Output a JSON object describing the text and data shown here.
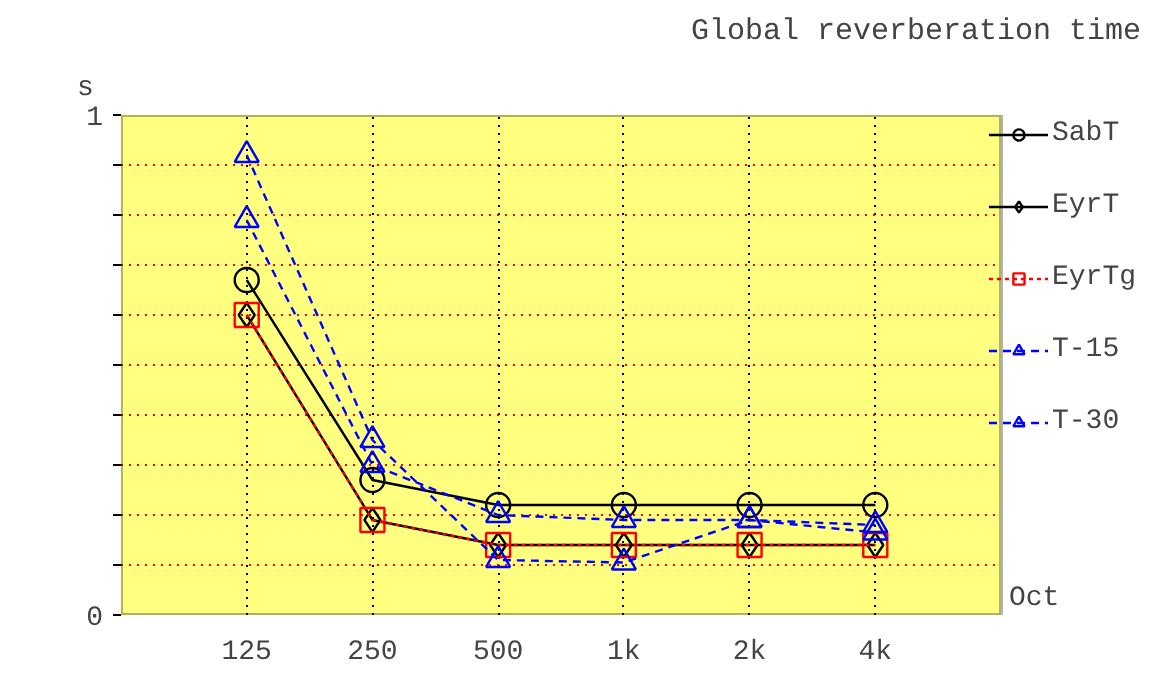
{
  "chart_data": {
    "type": "line",
    "title": "Global reverberation time",
    "ylabel": "s",
    "xlabel": "Oct",
    "categories": [
      "125",
      "250",
      "500",
      "1k",
      "2k",
      "4k"
    ],
    "ylim": [
      0,
      1
    ],
    "yticks": [
      0,
      {
        "value": 0.1,
        "label": null
      },
      {
        "value": 0.2,
        "label": null
      },
      {
        "value": 0.3,
        "label": null
      },
      {
        "value": 0.4,
        "label": null
      },
      {
        "value": 0.5,
        "label": null
      },
      {
        "value": 0.6,
        "label": null
      },
      {
        "value": 0.7,
        "label": null
      },
      {
        "value": 0.8,
        "label": null
      },
      {
        "value": 0.9,
        "label": null
      },
      1
    ],
    "grid": true,
    "legend": "right",
    "series": [
      {
        "name": "SabT",
        "color": "#000000",
        "marker": "circle",
        "line_style": "solid",
        "values": [
          0.67,
          0.27,
          0.22,
          0.22,
          0.22,
          0.22
        ]
      },
      {
        "name": "EyrT",
        "color": "#000000",
        "marker": "diamond",
        "line_style": "solid",
        "values": [
          0.6,
          0.19,
          0.14,
          0.14,
          0.14,
          0.14
        ]
      },
      {
        "name": "EyrTg",
        "color": "#ff0000",
        "marker": "square",
        "line_style": "dotted",
        "values": [
          0.6,
          0.19,
          0.14,
          0.14,
          0.14,
          0.14
        ]
      },
      {
        "name": "T-15",
        "color": "#0000ff",
        "marker": "triangle",
        "line_style": "dashed",
        "values": [
          0.79,
          0.3,
          0.2,
          0.19,
          0.19,
          0.18
        ]
      },
      {
        "name": "T-30",
        "color": "#0000ff",
        "marker": "triangle",
        "line_style": "dashed",
        "values": [
          0.92,
          0.35,
          0.11,
          0.105,
          0.19,
          0.165
        ]
      }
    ]
  }
}
